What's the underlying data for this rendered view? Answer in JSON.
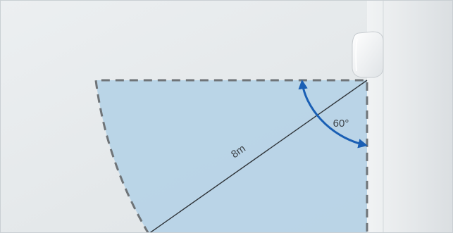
{
  "diagram": {
    "distance_label": "8m",
    "angle_label": "60°"
  },
  "colors": {
    "zone_fill": "#b6d3e6",
    "zone_border": "#6f7478",
    "sweep_arrow": "#1a5fb4",
    "wall": "#e7eaec",
    "background": "#e9ecee"
  }
}
